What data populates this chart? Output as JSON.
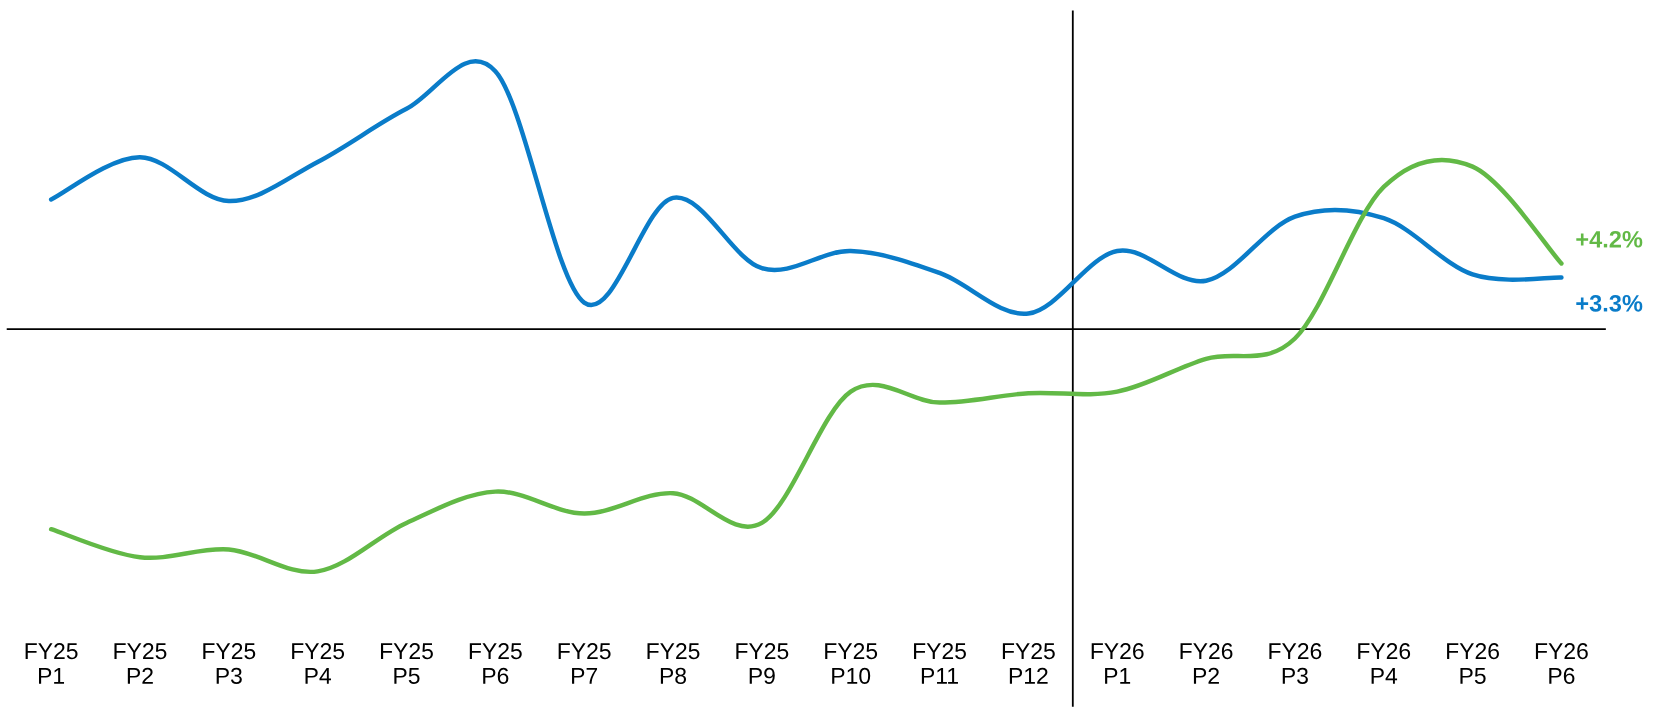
{
  "chart_data": {
    "type": "line",
    "categories": [
      "FY25\nP1",
      "FY25\nP2",
      "FY25\nP3",
      "FY25\nP4",
      "FY25\nP5",
      "FY25\nP6",
      "FY25\nP7",
      "FY25\nP8",
      "FY25\nP9",
      "FY25\nP10",
      "FY25\nP11",
      "FY25\nP12",
      "FY26\nP1",
      "FY26\nP2",
      "FY26\nP3",
      "FY26\nP4",
      "FY26\nP5",
      "FY26\nP6"
    ],
    "series": [
      {
        "color": "#0a7cc9",
        "values": [
          8.3,
          11.0,
          8.2,
          10.7,
          14.1,
          16.5,
          1.7,
          8.4,
          3.9,
          5.0,
          3.6,
          1.0,
          5.0,
          3.1,
          7.2,
          7.1,
          3.5,
          3.3
        ],
        "value_labels": [
          null,
          null,
          null,
          null,
          null,
          null,
          null,
          null,
          null,
          null,
          null,
          null,
          null,
          null,
          null,
          null,
          null,
          "+3.3%"
        ]
      },
      {
        "color": "#62b946",
        "values": [
          -12.8,
          -14.6,
          -14.1,
          -15.5,
          -12.4,
          -10.4,
          -11.8,
          -10.5,
          -12.4,
          -4.0,
          -4.7,
          -4.1,
          -4.0,
          -1.9,
          -0.6,
          9.1,
          10.4,
          4.2
        ],
        "value_labels": [
          null,
          null,
          null,
          null,
          null,
          null,
          null,
          null,
          null,
          null,
          null,
          null,
          null,
          null,
          null,
          null,
          null,
          "+4.2%"
        ]
      }
    ],
    "tick_labels": "x",
    "grid": false,
    "legend": false,
    "ref_lines": [
      {
        "axis": "y",
        "value": 0,
        "color": "#000000"
      }
    ]
  }
}
